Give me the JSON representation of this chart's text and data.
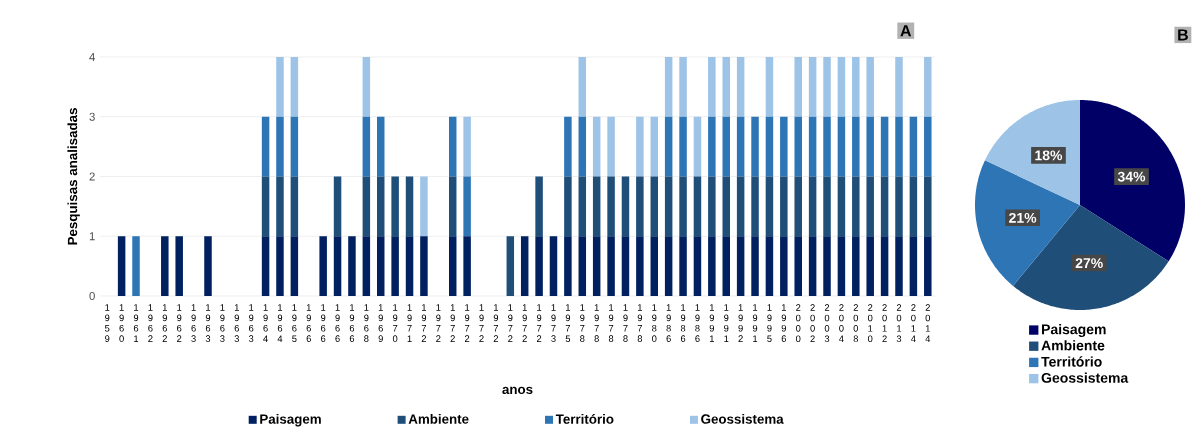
{
  "chart_data": [
    {
      "type": "bar",
      "stacked": true,
      "xlabel": "anos",
      "ylabel": "Pesquisas analisadas",
      "annotations": [
        "A"
      ],
      "categories": [
        "1959",
        "1960",
        "1961",
        "1962",
        "1962",
        "1962",
        "1963",
        "1963",
        "1963",
        "1963",
        "1963",
        "1964",
        "1964",
        "1965",
        "1966",
        "1966",
        "1966",
        "1966",
        "1968",
        "1969",
        "1970",
        "1971",
        "1972",
        "1972",
        "1972",
        "1972",
        "1972",
        "1972",
        "1972",
        "1972",
        "1972",
        "1973",
        "1975",
        "1978",
        "1978",
        "1978",
        "1978",
        "1978",
        "1980",
        "1986",
        "1986",
        "1986",
        "1991",
        "1991",
        "1992",
        "1991",
        "1995",
        "1996",
        "2000",
        "2002",
        "2003",
        "2004",
        "2008",
        "2010",
        "2012",
        "2013",
        "2014",
        "2014"
      ],
      "series": [
        {
          "name": "Paisagem",
          "color": "#002060",
          "values": [
            0,
            1,
            0,
            0,
            1,
            1,
            0,
            1,
            0,
            0,
            0,
            1,
            1,
            1,
            0,
            1,
            1,
            1,
            1,
            1,
            1,
            1,
            1,
            0,
            1,
            1,
            0,
            0,
            0,
            1,
            1,
            1,
            1,
            1,
            1,
            1,
            1,
            1,
            1,
            1,
            1,
            1,
            1,
            1,
            1,
            1,
            1,
            1,
            1,
            1,
            1,
            1,
            1,
            1,
            1,
            1,
            1,
            1
          ]
        },
        {
          "name": "Ambiente",
          "color": "#1f4e79",
          "values": [
            0,
            0,
            0,
            0,
            0,
            0,
            0,
            0,
            0,
            0,
            0,
            1,
            1,
            1,
            0,
            0,
            1,
            0,
            1,
            1,
            1,
            1,
            0,
            0,
            1,
            0,
            0,
            0,
            1,
            0,
            1,
            0,
            1,
            1,
            1,
            1,
            1,
            1,
            1,
            1,
            1,
            1,
            1,
            1,
            1,
            1,
            1,
            1,
            1,
            1,
            1,
            1,
            1,
            1,
            1,
            1,
            1,
            1
          ]
        },
        {
          "name": "Território",
          "color": "#2e75b6",
          "values": [
            0,
            0,
            1,
            0,
            0,
            0,
            0,
            0,
            0,
            0,
            0,
            1,
            1,
            1,
            0,
            0,
            0,
            0,
            1,
            1,
            0,
            0,
            0,
            0,
            1,
            1,
            0,
            0,
            0,
            0,
            0,
            0,
            1,
            1,
            0,
            0,
            0,
            0,
            0,
            1,
            1,
            0,
            1,
            1,
            1,
            1,
            1,
            1,
            1,
            1,
            1,
            1,
            1,
            1,
            1,
            1,
            1,
            1
          ]
        },
        {
          "name": "Geossistema",
          "color": "#9dc3e6",
          "values": [
            0,
            0,
            0,
            0,
            0,
            0,
            0,
            0,
            0,
            0,
            0,
            0,
            1,
            1,
            0,
            0,
            0,
            0,
            1,
            0,
            0,
            0,
            1,
            0,
            0,
            1,
            0,
            0,
            0,
            0,
            0,
            0,
            0,
            1,
            1,
            1,
            0,
            1,
            1,
            1,
            1,
            1,
            1,
            1,
            1,
            0,
            1,
            0,
            1,
            1,
            1,
            1,
            1,
            1,
            0,
            1,
            0,
            1
          ]
        }
      ],
      "ylim": [
        0,
        4
      ],
      "yticks": [
        0,
        1,
        2,
        3,
        4
      ],
      "grid": "y",
      "legend": "bottom"
    },
    {
      "type": "pie",
      "annotations": [
        "B"
      ],
      "categories": [
        "Paisagem",
        "Ambiente",
        "Território",
        "Geossistema"
      ],
      "values": [
        34,
        27,
        21,
        18
      ],
      "colors": [
        "#000066",
        "#1f4e79",
        "#2e75b6",
        "#9dc3e6"
      ],
      "value_labels": [
        "34%",
        "27%",
        "21%",
        "18%"
      ],
      "legend": "bottom"
    }
  ]
}
